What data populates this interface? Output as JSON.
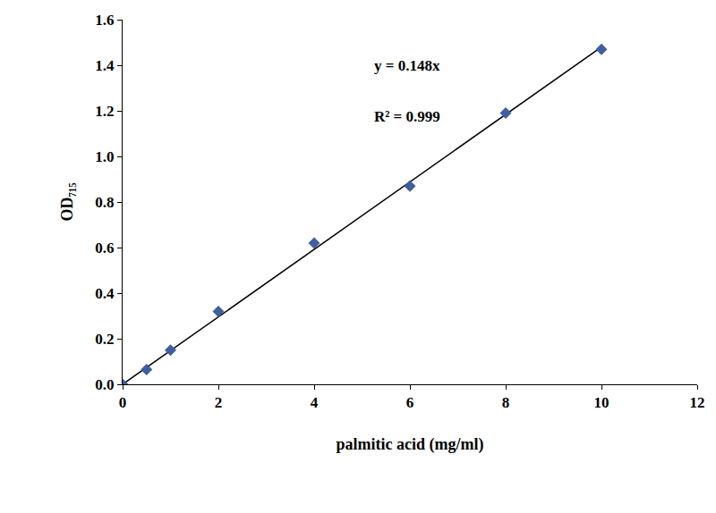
{
  "chart_data": {
    "type": "scatter",
    "x_label": "palmitic acid (mg/ml)",
    "y_label": "OD₇₁₅",
    "annotations": [
      "y = 0.148x",
      "R² = 0.999"
    ],
    "series": [
      {
        "type": "scatter",
        "marker": "diamond",
        "color": "#3f5f9f",
        "x": [
          0,
          0.5,
          1,
          2,
          4,
          6,
          8,
          10
        ],
        "values": [
          0,
          0.065,
          0.15,
          0.32,
          0.62,
          0.87,
          1.19,
          1.47
        ]
      },
      {
        "type": "line",
        "line_style": "solid",
        "color": "#000000",
        "x": [
          0,
          10
        ],
        "values": [
          0,
          1.48
        ]
      }
    ],
    "xlim": [
      0,
      12
    ],
    "xticks": [
      0,
      2,
      4,
      6,
      8,
      10,
      12
    ],
    "ylim": [
      0,
      1.6
    ],
    "yticks": [
      {
        "value": 0,
        "label": "0.0"
      },
      0.2,
      0.4,
      0.6,
      0.8,
      {
        "value": 1,
        "label": "1.0"
      },
      1.2,
      1.4,
      1.6
    ],
    "grid": false
  }
}
